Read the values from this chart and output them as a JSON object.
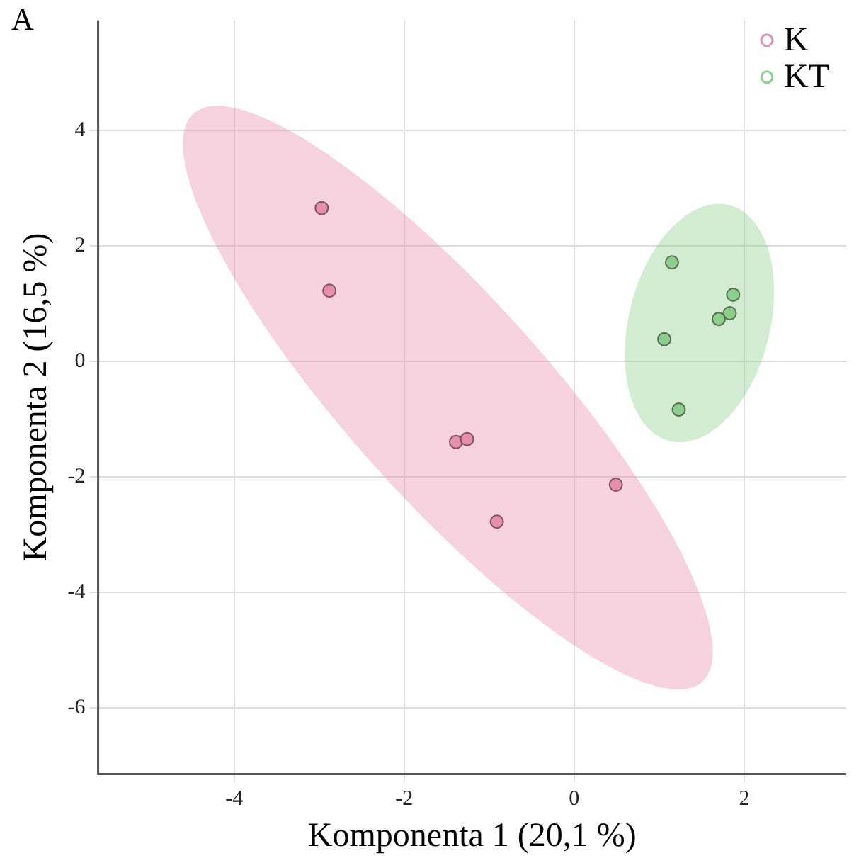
{
  "chart_data": {
    "type": "scatter",
    "title": "A",
    "xlabel": "Komponenta 1 (20,1 %)",
    "ylabel": "Komponenta 2 (16,5 %)",
    "xlim": [
      -5.6,
      3.2
    ],
    "xticks": [
      -4,
      -2,
      0,
      2
    ],
    "ylim": [
      -7.15,
      5.9
    ],
    "yticks": [
      -6,
      -4,
      -2,
      0,
      2,
      4
    ],
    "grid": true,
    "legend": "top right",
    "marker": "circle",
    "series": [
      {
        "name": "K",
        "color": "#e58fac",
        "x": [
          -2.97,
          -2.88,
          -1.39,
          -1.26,
          -0.91,
          0.49
        ],
        "values": [
          2.65,
          1.22,
          -1.4,
          -1.35,
          -2.78,
          -2.14
        ]
      },
      {
        "name": "KT",
        "color": "#8ccf8c",
        "x": [
          1.15,
          1.87,
          1.83,
          1.7,
          1.06,
          1.23
        ],
        "values": [
          1.71,
          1.15,
          0.83,
          0.73,
          0.38,
          -0.84
        ]
      }
    ]
  }
}
